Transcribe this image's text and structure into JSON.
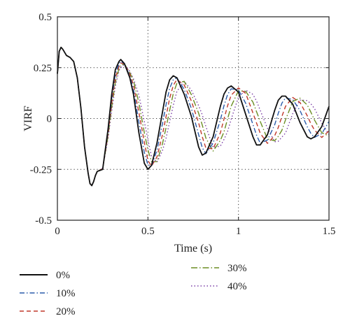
{
  "chart_data": {
    "type": "line",
    "xlabel": "Time (s)",
    "ylabel": "VIRF",
    "xlim": [
      0,
      1.5
    ],
    "ylim": [
      -0.5,
      0.5
    ],
    "x_ticks": [
      0,
      0.5,
      1,
      1.5
    ],
    "x_tick_labels": [
      "0",
      "0.5",
      "1",
      "1.5"
    ],
    "y_ticks": [
      -0.5,
      -0.25,
      0,
      0.25,
      0.5
    ],
    "y_tick_labels": [
      "-0.5",
      "-0.25",
      "0",
      "0.25",
      "0.5"
    ],
    "grid": "dotted",
    "legend_position": "bottom",
    "x": [
      0,
      0.01,
      0.02,
      0.03,
      0.05,
      0.07,
      0.09,
      0.11,
      0.13,
      0.15,
      0.17,
      0.18,
      0.19,
      0.2,
      0.21,
      0.22,
      0.25,
      0.28,
      0.3,
      0.32,
      0.34,
      0.35,
      0.37,
      0.4,
      0.42,
      0.45,
      0.48,
      0.5,
      0.52,
      0.55,
      0.58,
      0.6,
      0.62,
      0.64,
      0.66,
      0.7,
      0.74,
      0.78,
      0.8,
      0.82,
      0.86,
      0.9,
      0.92,
      0.94,
      0.96,
      1,
      1.04,
      1.08,
      1.1,
      1.12,
      1.16,
      1.2,
      1.22,
      1.24,
      1.26,
      1.3,
      1.34,
      1.38,
      1.4,
      1.42,
      1.46,
      1.5
    ],
    "series": [
      {
        "name": "0%",
        "color": "#111111",
        "dash": "solid",
        "values": [
          0.22,
          0.33,
          0.35,
          0.34,
          0.31,
          0.3,
          0.28,
          0.2,
          0.05,
          -0.14,
          -0.27,
          -0.32,
          -0.33,
          -0.31,
          -0.28,
          -0.26,
          -0.25,
          -0.05,
          0.12,
          0.24,
          0.28,
          0.29,
          0.27,
          0.2,
          0.12,
          -0.07,
          -0.22,
          -0.25,
          -0.23,
          -0.12,
          0.03,
          0.13,
          0.19,
          0.21,
          0.2,
          0.12,
          0.01,
          -0.14,
          -0.18,
          -0.17,
          -0.09,
          0.06,
          0.12,
          0.15,
          0.16,
          0.13,
          0.02,
          -0.09,
          -0.13,
          -0.13,
          -0.08,
          0.04,
          0.09,
          0.11,
          0.11,
          0.07,
          -0.02,
          -0.09,
          -0.1,
          -0.09,
          -0.04,
          0.06
        ]
      },
      {
        "name": "10%",
        "color": "#2a5cab",
        "dash": "dashdot",
        "shift": 0.012
      },
      {
        "name": "20%",
        "color": "#c0392b",
        "dash": "dash",
        "shift": 0.024
      },
      {
        "name": "30%",
        "color": "#6b8e23",
        "dash": "dashdot2",
        "shift": 0.036
      },
      {
        "name": "40%",
        "color": "#7b3fa6",
        "dash": "dot",
        "shift": 0.048
      }
    ]
  }
}
